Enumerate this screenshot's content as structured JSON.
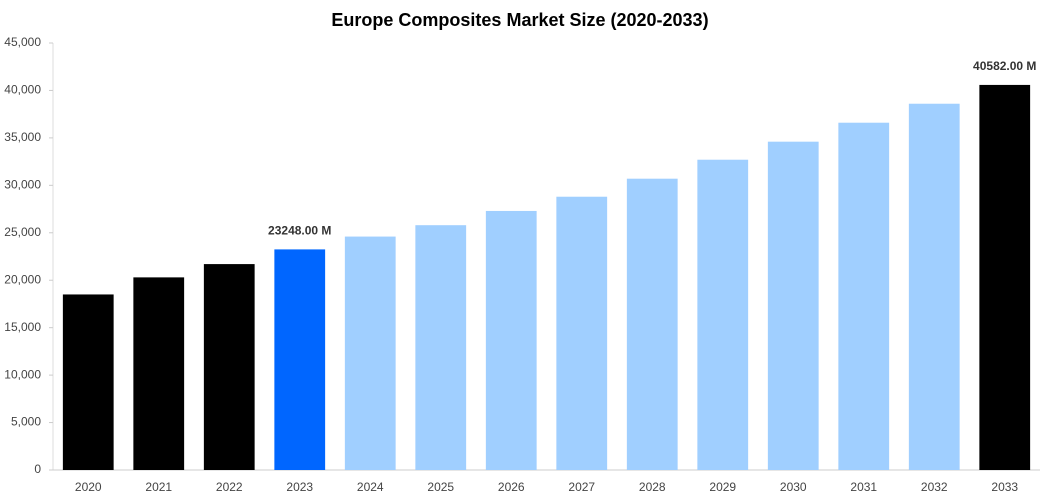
{
  "chart_data": {
    "type": "bar",
    "title": "Europe Composites Market Size (2020-2033)",
    "categories": [
      "2020",
      "2021",
      "2022",
      "2023",
      "2024",
      "2025",
      "2026",
      "2027",
      "2028",
      "2029",
      "2030",
      "2031",
      "2032",
      "2033"
    ],
    "values": [
      18500,
      20300,
      21700,
      23248,
      24600,
      25800,
      27300,
      28800,
      30700,
      32700,
      34600,
      36600,
      38600,
      40582
    ],
    "value_labels": [
      null,
      null,
      null,
      "23248.00 M",
      null,
      null,
      null,
      null,
      null,
      null,
      null,
      null,
      null,
      "40582.00 M"
    ],
    "colors": [
      "#000000",
      "#000000",
      "#000000",
      "#0066ff",
      "#a0cfff",
      "#a0cfff",
      "#a0cfff",
      "#a0cfff",
      "#a0cfff",
      "#a0cfff",
      "#a0cfff",
      "#a0cfff",
      "#a0cfff",
      "#000000"
    ],
    "ylim": [
      0,
      45000
    ],
    "yticks": [
      0,
      {
        "value": 5000,
        "label": "5,000"
      },
      {
        "value": 10000,
        "label": "10,000"
      },
      {
        "value": 15000,
        "label": "15,000"
      },
      {
        "value": 20000,
        "label": "20,000"
      },
      {
        "value": 25000,
        "label": "25,000"
      },
      {
        "value": 30000,
        "label": "30,000"
      },
      {
        "value": 35000,
        "label": "35,000"
      },
      {
        "value": 40000,
        "label": "40,000"
      },
      {
        "value": 45000,
        "label": "45,000"
      }
    ],
    "grid": false
  }
}
